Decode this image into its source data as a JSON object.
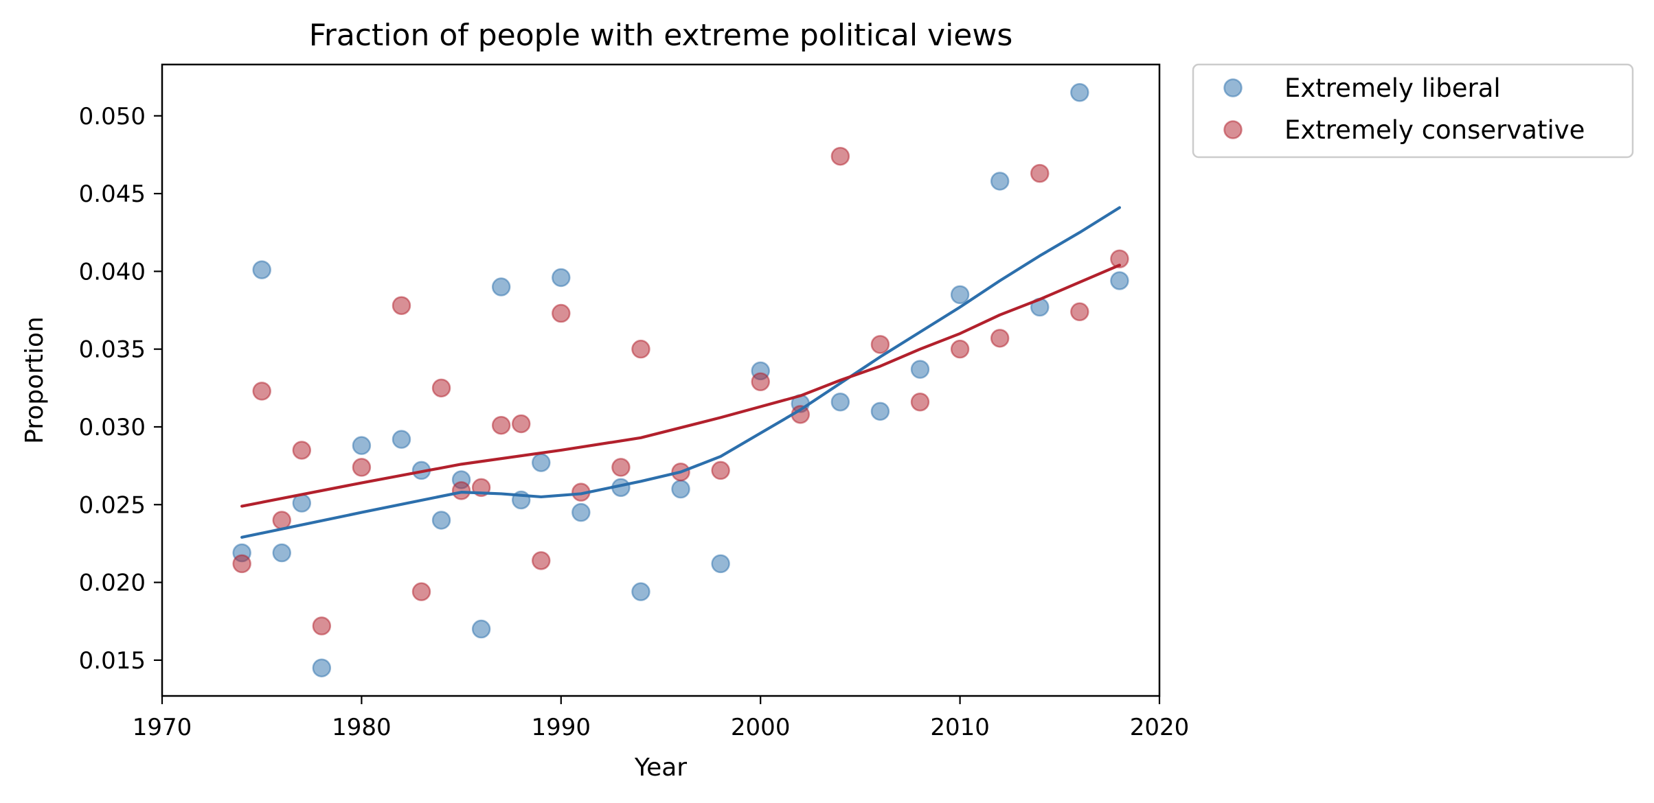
{
  "chart_data": {
    "type": "scatter",
    "title": "Fraction of people with extreme political views",
    "xlabel": "Year",
    "ylabel": "Proportion",
    "xlim": [
      1970,
      2020
    ],
    "ylim": [
      0.0127,
      0.0533
    ],
    "xticks": [
      1970,
      1980,
      1990,
      2000,
      2010,
      2020
    ],
    "yticks": [
      0.015,
      0.02,
      0.025,
      0.03,
      0.035,
      0.04,
      0.045,
      0.05
    ],
    "ytick_labels": [
      "0.015",
      "0.020",
      "0.025",
      "0.030",
      "0.035",
      "0.040",
      "0.045",
      "0.050"
    ],
    "grid": false,
    "legend_position": "outside-top-right",
    "series": [
      {
        "name": "Extremely liberal",
        "color": "#2C6FAC",
        "x": [
          1974,
          1975,
          1976,
          1977,
          1978,
          1980,
          1982,
          1983,
          1984,
          1985,
          1986,
          1987,
          1988,
          1989,
          1990,
          1991,
          1993,
          1994,
          1996,
          1998,
          2000,
          2002,
          2004,
          2006,
          2008,
          2010,
          2012,
          2014,
          2016,
          2018
        ],
        "y": [
          0.0219,
          0.0401,
          0.0219,
          0.0251,
          0.0145,
          0.0288,
          0.0292,
          0.0272,
          0.024,
          0.0266,
          0.017,
          0.039,
          0.0253,
          0.0277,
          0.0396,
          0.0245,
          0.0261,
          0.0194,
          0.026,
          0.0212,
          0.0336,
          0.0315,
          0.0316,
          0.031,
          0.0337,
          0.0385,
          0.0458,
          0.0377,
          0.0515,
          0.0394
        ],
        "smooth_x": [
          1974,
          1980,
          1985,
          1987,
          1989,
          1991,
          1994,
          1996,
          1998,
          2000,
          2002,
          2004,
          2006,
          2008,
          2010,
          2012,
          2014,
          2016,
          2018
        ],
        "smooth_y": [
          0.0229,
          0.0245,
          0.0258,
          0.0257,
          0.0255,
          0.0257,
          0.0265,
          0.0271,
          0.0281,
          0.0296,
          0.0311,
          0.0328,
          0.0345,
          0.0361,
          0.0377,
          0.0394,
          0.041,
          0.0425,
          0.0441
        ]
      },
      {
        "name": "Extremely conservative",
        "color": "#B2202C",
        "x": [
          1974,
          1975,
          1976,
          1977,
          1978,
          1980,
          1982,
          1983,
          1984,
          1985,
          1986,
          1987,
          1988,
          1989,
          1990,
          1991,
          1993,
          1994,
          1996,
          1998,
          2000,
          2002,
          2004,
          2006,
          2008,
          2010,
          2012,
          2014,
          2016,
          2018
        ],
        "y": [
          0.0212,
          0.0323,
          0.024,
          0.0285,
          0.0172,
          0.0274,
          0.0378,
          0.0194,
          0.0325,
          0.0259,
          0.0261,
          0.0301,
          0.0302,
          0.0214,
          0.0373,
          0.0258,
          0.0274,
          0.035,
          0.0271,
          0.0272,
          0.0329,
          0.0308,
          0.0474,
          0.0353,
          0.0316,
          0.035,
          0.0357,
          0.0463,
          0.0374,
          0.0408
        ],
        "smooth_x": [
          1974,
          1980,
          1985,
          1990,
          1994,
          1998,
          2000,
          2002,
          2004,
          2006,
          2008,
          2010,
          2012,
          2014,
          2016,
          2018
        ],
        "smooth_y": [
          0.0249,
          0.0264,
          0.0276,
          0.0285,
          0.0293,
          0.0306,
          0.0313,
          0.032,
          0.033,
          0.0339,
          0.035,
          0.036,
          0.0372,
          0.0382,
          0.0393,
          0.0404
        ]
      }
    ]
  }
}
